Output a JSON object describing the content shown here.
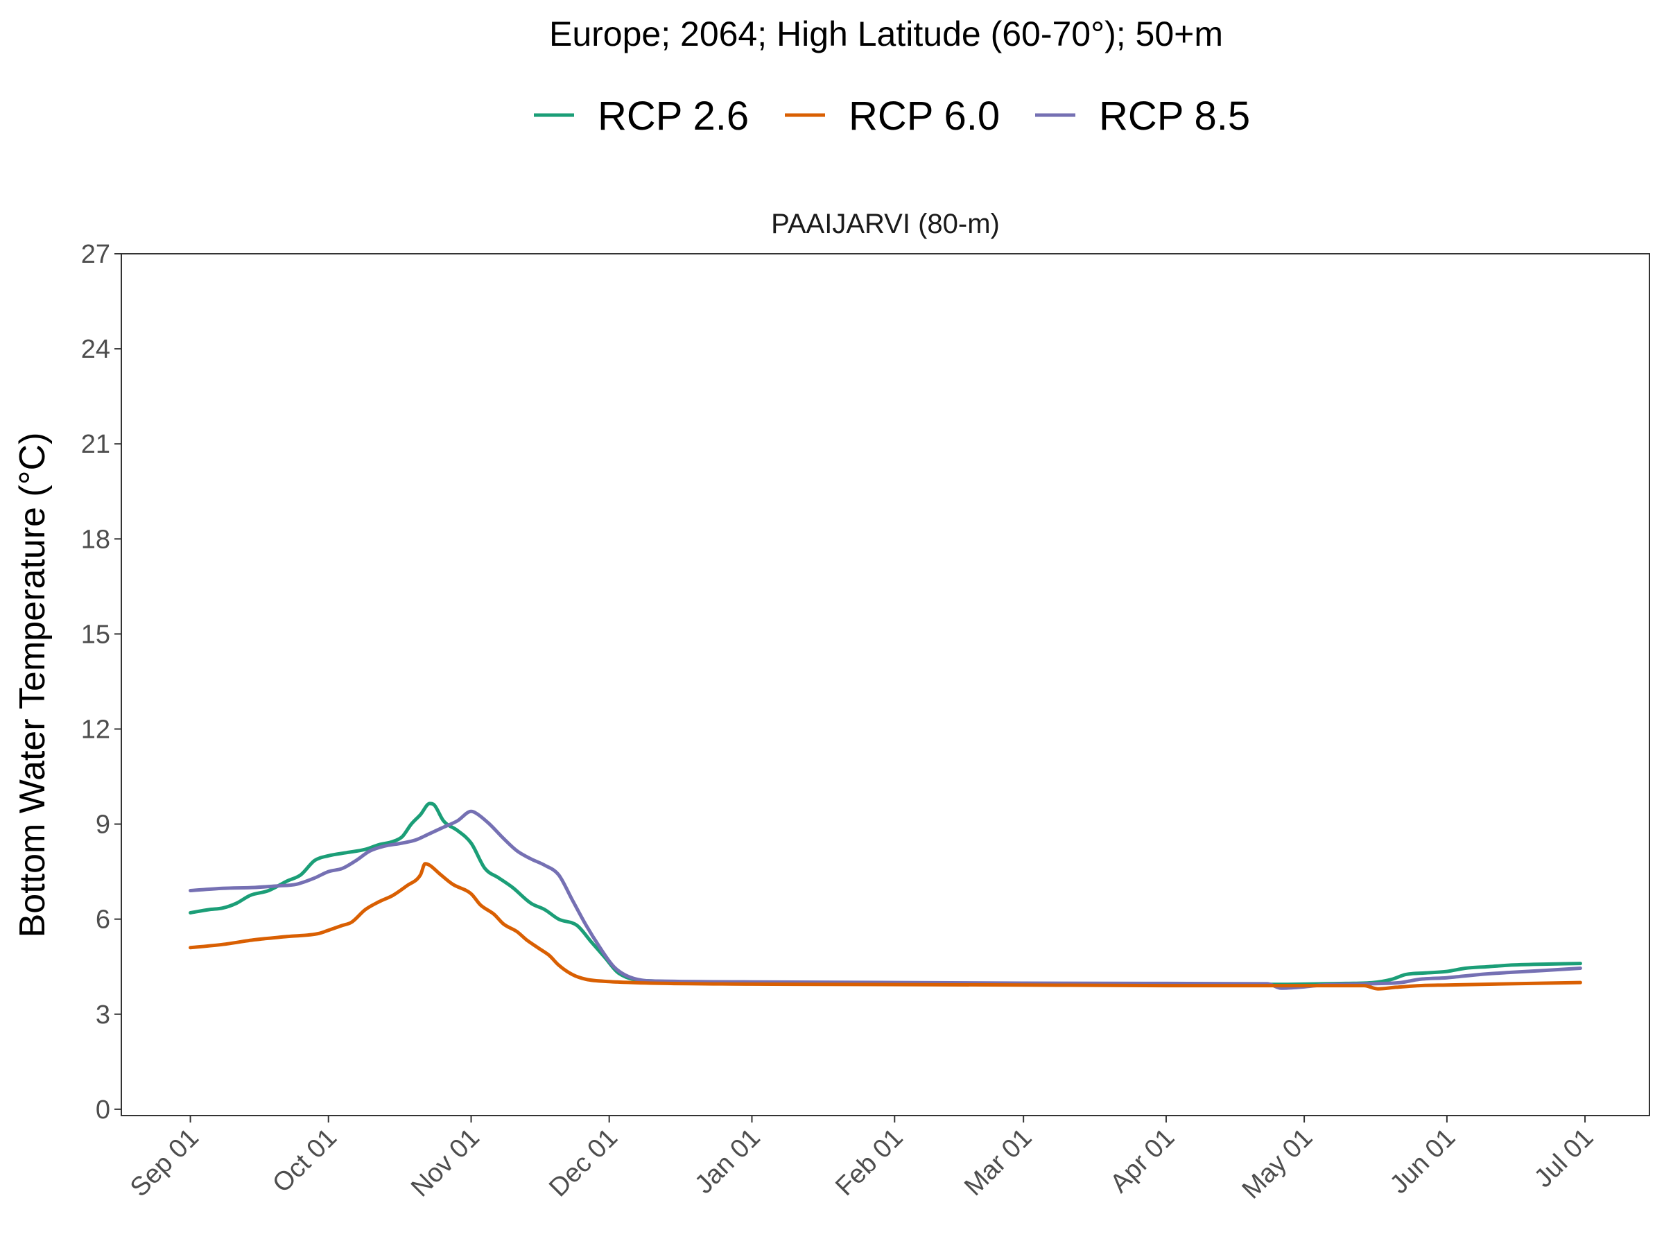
{
  "chart_data": {
    "type": "line",
    "title": "Europe;  2064;  High Latitude (60-70°);  50+m",
    "panel_title": "PAAIJARVI (80-m)",
    "xlabel": "",
    "ylabel": "Bottom Water Temperature (°C)",
    "x_ticks": [
      {
        "label": "Sep 01",
        "date": "2064-09-01"
      },
      {
        "label": "Oct 01",
        "date": "2064-10-01"
      },
      {
        "label": "Nov 01",
        "date": "2064-11-01"
      },
      {
        "label": "Dec 01",
        "date": "2064-12-01"
      },
      {
        "label": "Jan 01",
        "date": "2065-01-01"
      },
      {
        "label": "Feb 01",
        "date": "2065-02-01"
      },
      {
        "label": "Mar 01",
        "date": "2065-03-01"
      },
      {
        "label": "Apr 01",
        "date": "2065-04-01"
      },
      {
        "label": "May 01",
        "date": "2065-05-01"
      },
      {
        "label": "Jun 01",
        "date": "2065-06-01"
      },
      {
        "label": "Jul 01",
        "date": "2065-07-01"
      }
    ],
    "xlim": [
      "2064-08-17",
      "2065-07-15"
    ],
    "ylim": [
      -0.2,
      27
    ],
    "y_ticks": [
      0,
      3,
      6,
      9,
      12,
      15,
      18,
      21,
      24,
      27
    ],
    "grid": false,
    "legend_position": "top",
    "series": [
      {
        "name": "RCP 2.6",
        "color": "#1b9e77",
        "points": [
          [
            "2064-09-01",
            6.2
          ],
          [
            "2064-09-05",
            6.3
          ],
          [
            "2064-09-08",
            6.35
          ],
          [
            "2064-09-11",
            6.5
          ],
          [
            "2064-09-14",
            6.75
          ],
          [
            "2064-09-18",
            6.9
          ],
          [
            "2064-09-22",
            7.2
          ],
          [
            "2064-09-25",
            7.4
          ],
          [
            "2064-09-28",
            7.85
          ],
          [
            "2064-10-01",
            8.0
          ],
          [
            "2064-10-05",
            8.1
          ],
          [
            "2064-10-09",
            8.2
          ],
          [
            "2064-10-12",
            8.35
          ],
          [
            "2064-10-15",
            8.45
          ],
          [
            "2064-10-17",
            8.6
          ],
          [
            "2064-10-19",
            9.0
          ],
          [
            "2064-10-21",
            9.3
          ],
          [
            "2064-10-23",
            9.65
          ],
          [
            "2064-10-24",
            9.6
          ],
          [
            "2064-10-26",
            9.1
          ],
          [
            "2064-10-29",
            8.8
          ],
          [
            "2064-11-01",
            8.4
          ],
          [
            "2064-11-04",
            7.6
          ],
          [
            "2064-11-07",
            7.3
          ],
          [
            "2064-11-10",
            7.0
          ],
          [
            "2064-11-14",
            6.5
          ],
          [
            "2064-11-17",
            6.3
          ],
          [
            "2064-11-20",
            6.0
          ],
          [
            "2064-11-24",
            5.8
          ],
          [
            "2064-11-27",
            5.3
          ],
          [
            "2064-11-30",
            4.8
          ],
          [
            "2064-12-03",
            4.3
          ],
          [
            "2064-12-10",
            4.05
          ],
          [
            "2065-01-01",
            4.0
          ],
          [
            "2065-02-01",
            3.98
          ],
          [
            "2065-03-01",
            3.96
          ],
          [
            "2065-04-01",
            3.95
          ],
          [
            "2065-04-25",
            3.94
          ],
          [
            "2065-05-01",
            3.95
          ],
          [
            "2065-05-10",
            3.97
          ],
          [
            "2065-05-16",
            4.0
          ],
          [
            "2065-05-20",
            4.1
          ],
          [
            "2065-05-23",
            4.25
          ],
          [
            "2065-05-27",
            4.3
          ],
          [
            "2065-06-01",
            4.35
          ],
          [
            "2065-06-05",
            4.45
          ],
          [
            "2065-06-10",
            4.5
          ],
          [
            "2065-06-15",
            4.55
          ],
          [
            "2065-06-22",
            4.58
          ],
          [
            "2065-06-30",
            4.6
          ]
        ]
      },
      {
        "name": "RCP 6.0",
        "color": "#d95f02",
        "points": [
          [
            "2064-09-01",
            5.1
          ],
          [
            "2064-09-08",
            5.2
          ],
          [
            "2064-09-15",
            5.35
          ],
          [
            "2064-09-22",
            5.45
          ],
          [
            "2064-09-29",
            5.55
          ],
          [
            "2064-10-01",
            5.65
          ],
          [
            "2064-10-04",
            5.8
          ],
          [
            "2064-10-06",
            5.9
          ],
          [
            "2064-10-09",
            6.3
          ],
          [
            "2064-10-12",
            6.55
          ],
          [
            "2064-10-15",
            6.75
          ],
          [
            "2064-10-18",
            7.05
          ],
          [
            "2064-10-21",
            7.4
          ],
          [
            "2064-10-22",
            7.75
          ],
          [
            "2064-10-23",
            7.7
          ],
          [
            "2064-10-25",
            7.45
          ],
          [
            "2064-10-28",
            7.1
          ],
          [
            "2064-11-01",
            6.8
          ],
          [
            "2064-11-03",
            6.45
          ],
          [
            "2064-11-06",
            6.15
          ],
          [
            "2064-11-08",
            5.85
          ],
          [
            "2064-11-11",
            5.6
          ],
          [
            "2064-11-13",
            5.35
          ],
          [
            "2064-11-16",
            5.05
          ],
          [
            "2064-11-18",
            4.85
          ],
          [
            "2064-11-20",
            4.55
          ],
          [
            "2064-11-23",
            4.25
          ],
          [
            "2064-11-26",
            4.1
          ],
          [
            "2064-12-01",
            4.03
          ],
          [
            "2064-12-10",
            3.98
          ],
          [
            "2065-01-01",
            3.95
          ],
          [
            "2065-03-01",
            3.92
          ],
          [
            "2065-04-01",
            3.9
          ],
          [
            "2065-05-01",
            3.9
          ],
          [
            "2065-05-14",
            3.9
          ],
          [
            "2065-05-17",
            3.8
          ],
          [
            "2065-05-21",
            3.85
          ],
          [
            "2065-05-26",
            3.9
          ],
          [
            "2065-06-01",
            3.92
          ],
          [
            "2065-06-15",
            3.96
          ],
          [
            "2065-06-30",
            4.0
          ]
        ]
      },
      {
        "name": "RCP 8.5",
        "color": "#7570b3",
        "points": [
          [
            "2064-09-01",
            6.9
          ],
          [
            "2064-09-08",
            6.97
          ],
          [
            "2064-09-15",
            7.0
          ],
          [
            "2064-09-20",
            7.05
          ],
          [
            "2064-09-24",
            7.1
          ],
          [
            "2064-09-28",
            7.3
          ],
          [
            "2064-10-01",
            7.5
          ],
          [
            "2064-10-04",
            7.6
          ],
          [
            "2064-10-07",
            7.85
          ],
          [
            "2064-10-10",
            8.15
          ],
          [
            "2064-10-13",
            8.3
          ],
          [
            "2064-10-17",
            8.4
          ],
          [
            "2064-10-20",
            8.5
          ],
          [
            "2064-10-23",
            8.7
          ],
          [
            "2064-10-26",
            8.9
          ],
          [
            "2064-10-29",
            9.1
          ],
          [
            "2064-11-01",
            9.4
          ],
          [
            "2064-11-02",
            9.35
          ],
          [
            "2064-11-05",
            9.0
          ],
          [
            "2064-11-08",
            8.55
          ],
          [
            "2064-11-11",
            8.15
          ],
          [
            "2064-11-14",
            7.9
          ],
          [
            "2064-11-17",
            7.7
          ],
          [
            "2064-11-20",
            7.4
          ],
          [
            "2064-11-23",
            6.6
          ],
          [
            "2064-11-26",
            5.8
          ],
          [
            "2064-11-29",
            5.1
          ],
          [
            "2064-12-02",
            4.5
          ],
          [
            "2064-12-05",
            4.2
          ],
          [
            "2064-12-10",
            4.05
          ],
          [
            "2065-01-01",
            4.02
          ],
          [
            "2065-02-01",
            4.0
          ],
          [
            "2065-03-01",
            3.98
          ],
          [
            "2065-04-01",
            3.97
          ],
          [
            "2065-04-23",
            3.96
          ],
          [
            "2065-04-26",
            3.82
          ],
          [
            "2065-04-30",
            3.85
          ],
          [
            "2065-05-05",
            3.92
          ],
          [
            "2065-05-15",
            3.96
          ],
          [
            "2065-05-22",
            4.0
          ],
          [
            "2065-05-26",
            4.1
          ],
          [
            "2065-06-01",
            4.15
          ],
          [
            "2065-06-08",
            4.25
          ],
          [
            "2065-06-15",
            4.32
          ],
          [
            "2065-06-22",
            4.38
          ],
          [
            "2065-06-30",
            4.45
          ]
        ]
      }
    ]
  }
}
